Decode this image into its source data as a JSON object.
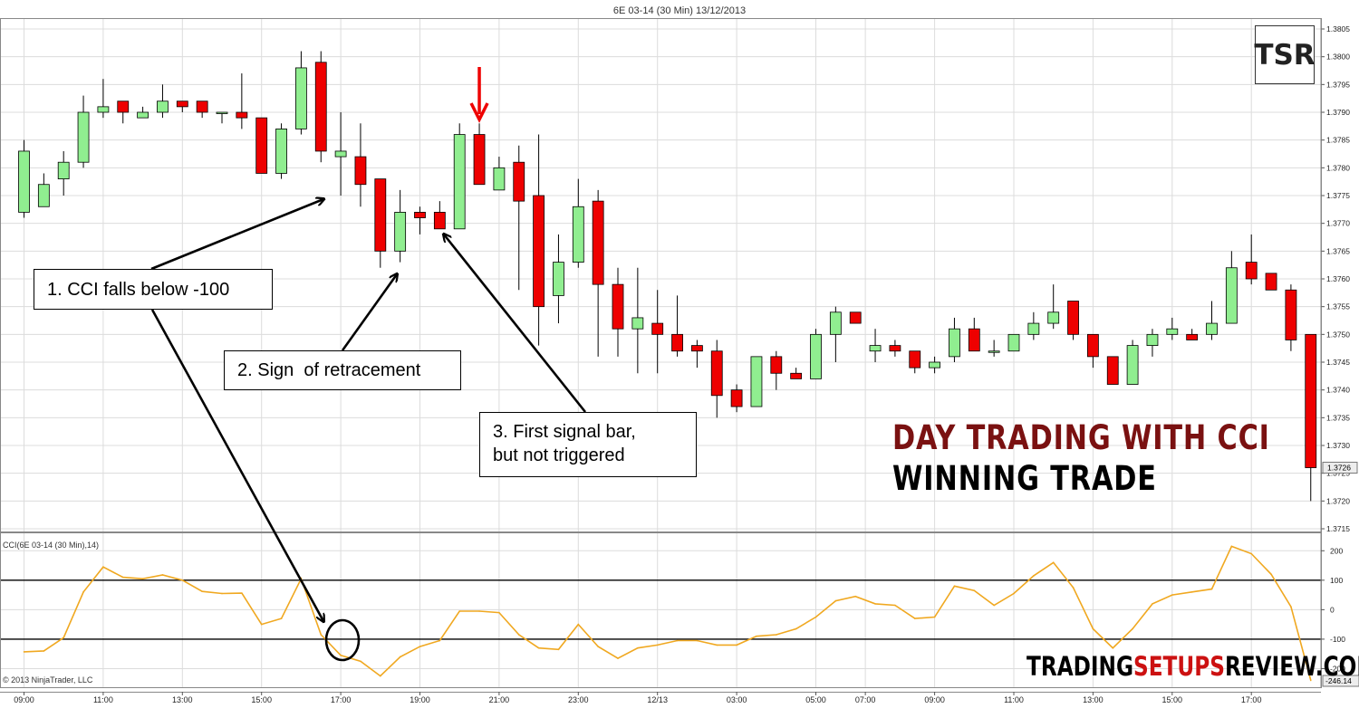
{
  "header": {
    "title": "6E 03-14 (30 Min)  13/12/2013"
  },
  "logo_text": "TSR",
  "copyright": "© 2013 NinjaTrader, LLC",
  "banner": {
    "line1": "DAY TRADING WITH CCI",
    "line2": "WINNING TRADE",
    "line1_color": "#7a1111",
    "line2_color": "#000000"
  },
  "brand": {
    "part1": "TRADING",
    "part2": "SETUPS",
    "part3": "REVIEW.COM",
    "accent_color": "#cc1111"
  },
  "annotations": [
    {
      "label": "1. CCI falls below -100",
      "lines": [
        "1. CCI falls below -100"
      ]
    },
    {
      "label": "2. Sign of retracement",
      "lines": [
        "2. Sign  of retracement"
      ]
    },
    {
      "label": "3. First signal bar, but not triggered",
      "lines": [
        "3. First signal bar,",
        "but not triggered"
      ]
    }
  ],
  "colors": {
    "up": "#90ee90",
    "down": "#ee0000",
    "cci_line": "#f0a820",
    "signal_arrow": "#ee0000",
    "grid": "#dcdcdc"
  },
  "chart_data": [
    {
      "type": "candlestick",
      "title": "6E 03-14 (30 Min)  13/12/2013",
      "ylim": [
        1.3715,
        1.3805
      ],
      "y_ticks": [
        "1.3805",
        "1.3800",
        "1.3795",
        "1.3790",
        "1.3785",
        "1.3780",
        "1.3775",
        "1.3770",
        "1.3765",
        "1.3760",
        "1.3755",
        "1.3750",
        "1.3745",
        "1.3740",
        "1.3735",
        "1.3730",
        "1.3725",
        "1.3720",
        "1.3715"
      ],
      "last_price": "1.3726",
      "x_ticks": [
        {
          "label": "09:00",
          "i": 0
        },
        {
          "label": "11:00",
          "i": 4
        },
        {
          "label": "13:00",
          "i": 8
        },
        {
          "label": "15:00",
          "i": 12
        },
        {
          "label": "17:00",
          "i": 16
        },
        {
          "label": "19:00",
          "i": 20
        },
        {
          "label": "21:00",
          "i": 24
        },
        {
          "label": "23:00",
          "i": 28
        },
        {
          "label": "12/13",
          "i": 32
        },
        {
          "label": "03:00",
          "i": 36
        },
        {
          "label": "05:00",
          "i": 40
        },
        {
          "label": "07:00",
          "i": 42.5
        },
        {
          "label": "09:00",
          "i": 46
        },
        {
          "label": "11:00",
          "i": 50
        },
        {
          "label": "13:00",
          "i": 54
        },
        {
          "label": "15:00",
          "i": 58
        },
        {
          "label": "17:00",
          "i": 62
        }
      ],
      "candles": [
        {
          "o": 1.3772,
          "h": 1.3785,
          "l": 1.3771,
          "c": 1.3783
        },
        {
          "o": 1.3773,
          "h": 1.3779,
          "l": 1.3773,
          "c": 1.3777
        },
        {
          "o": 1.3778,
          "h": 1.3783,
          "l": 1.3775,
          "c": 1.3781
        },
        {
          "o": 1.3781,
          "h": 1.3793,
          "l": 1.378,
          "c": 1.379
        },
        {
          "o": 1.379,
          "h": 1.3796,
          "l": 1.3789,
          "c": 1.3791
        },
        {
          "o": 1.3792,
          "h": 1.3792,
          "l": 1.3788,
          "c": 1.379
        },
        {
          "o": 1.3789,
          "h": 1.3791,
          "l": 1.3789,
          "c": 1.379
        },
        {
          "o": 1.379,
          "h": 1.3795,
          "l": 1.3789,
          "c": 1.3792
        },
        {
          "o": 1.3792,
          "h": 1.3792,
          "l": 1.379,
          "c": 1.3791
        },
        {
          "o": 1.3792,
          "h": 1.3792,
          "l": 1.3789,
          "c": 1.379
        },
        {
          "o": 1.379,
          "h": 1.379,
          "l": 1.3788,
          "c": 1.379
        },
        {
          "o": 1.379,
          "h": 1.3797,
          "l": 1.3787,
          "c": 1.3789
        },
        {
          "o": 1.3789,
          "h": 1.3789,
          "l": 1.3779,
          "c": 1.3779
        },
        {
          "o": 1.3779,
          "h": 1.3788,
          "l": 1.3778,
          "c": 1.3787
        },
        {
          "o": 1.3787,
          "h": 1.3801,
          "l": 1.3786,
          "c": 1.3798
        },
        {
          "o": 1.3799,
          "h": 1.3801,
          "l": 1.3781,
          "c": 1.3783
        },
        {
          "o": 1.3782,
          "h": 1.379,
          "l": 1.3775,
          "c": 1.3783
        },
        {
          "o": 1.3782,
          "h": 1.3788,
          "l": 1.3773,
          "c": 1.3777
        },
        {
          "o": 1.3778,
          "h": 1.3778,
          "l": 1.3762,
          "c": 1.3765
        },
        {
          "o": 1.3765,
          "h": 1.3776,
          "l": 1.3763,
          "c": 1.3772
        },
        {
          "o": 1.3772,
          "h": 1.3773,
          "l": 1.3768,
          "c": 1.3771
        },
        {
          "o": 1.3772,
          "h": 1.3774,
          "l": 1.3769,
          "c": 1.3769
        },
        {
          "o": 1.3769,
          "h": 1.3788,
          "l": 1.3769,
          "c": 1.3786
        },
        {
          "o": 1.3786,
          "h": 1.3788,
          "l": 1.3777,
          "c": 1.3777
        },
        {
          "o": 1.3776,
          "h": 1.3782,
          "l": 1.3776,
          "c": 1.378
        },
        {
          "o": 1.3781,
          "h": 1.3784,
          "l": 1.3758,
          "c": 1.3774
        },
        {
          "o": 1.3775,
          "h": 1.3786,
          "l": 1.3748,
          "c": 1.3755
        },
        {
          "o": 1.3757,
          "h": 1.3768,
          "l": 1.3752,
          "c": 1.3763
        },
        {
          "o": 1.3763,
          "h": 1.3778,
          "l": 1.3762,
          "c": 1.3773
        },
        {
          "o": 1.3774,
          "h": 1.3776,
          "l": 1.3746,
          "c": 1.3759
        },
        {
          "o": 1.3759,
          "h": 1.3762,
          "l": 1.3746,
          "c": 1.3751
        },
        {
          "o": 1.3751,
          "h": 1.3762,
          "l": 1.3743,
          "c": 1.3753
        },
        {
          "o": 1.3752,
          "h": 1.3758,
          "l": 1.3743,
          "c": 1.375
        },
        {
          "o": 1.375,
          "h": 1.3757,
          "l": 1.3746,
          "c": 1.3747
        },
        {
          "o": 1.3748,
          "h": 1.3749,
          "l": 1.3744,
          "c": 1.3747
        },
        {
          "o": 1.3747,
          "h": 1.3749,
          "l": 1.3735,
          "c": 1.3739
        },
        {
          "o": 1.374,
          "h": 1.3741,
          "l": 1.3736,
          "c": 1.3737
        },
        {
          "o": 1.3737,
          "h": 1.3746,
          "l": 1.3737,
          "c": 1.3746
        },
        {
          "o": 1.3746,
          "h": 1.3747,
          "l": 1.374,
          "c": 1.3743
        },
        {
          "o": 1.3743,
          "h": 1.3744,
          "l": 1.3742,
          "c": 1.3742
        },
        {
          "o": 1.3742,
          "h": 1.3751,
          "l": 1.3742,
          "c": 1.375
        },
        {
          "o": 1.375,
          "h": 1.3755,
          "l": 1.3745,
          "c": 1.3754
        },
        {
          "o": 1.3754,
          "h": 1.3754,
          "l": 1.3752,
          "c": 1.3752
        },
        {
          "o": 1.3747,
          "h": 1.3751,
          "l": 1.3745,
          "c": 1.3748
        },
        {
          "o": 1.3748,
          "h": 1.3749,
          "l": 1.3746,
          "c": 1.3747
        },
        {
          "o": 1.3747,
          "h": 1.3747,
          "l": 1.3743,
          "c": 1.3744
        },
        {
          "o": 1.3744,
          "h": 1.3746,
          "l": 1.3743,
          "c": 1.3745
        },
        {
          "o": 1.3746,
          "h": 1.3753,
          "l": 1.3745,
          "c": 1.3751
        },
        {
          "o": 1.3751,
          "h": 1.3753,
          "l": 1.3747,
          "c": 1.3747
        },
        {
          "o": 1.3747,
          "h": 1.3749,
          "l": 1.3746,
          "c": 1.3747
        },
        {
          "o": 1.3747,
          "h": 1.375,
          "l": 1.3747,
          "c": 1.375
        },
        {
          "o": 1.375,
          "h": 1.3754,
          "l": 1.3749,
          "c": 1.3752
        },
        {
          "o": 1.3752,
          "h": 1.3759,
          "l": 1.3751,
          "c": 1.3754
        },
        {
          "o": 1.3756,
          "h": 1.3756,
          "l": 1.3749,
          "c": 1.375
        },
        {
          "o": 1.375,
          "h": 1.375,
          "l": 1.3744,
          "c": 1.3746
        },
        {
          "o": 1.3746,
          "h": 1.3746,
          "l": 1.3741,
          "c": 1.3741
        },
        {
          "o": 1.3741,
          "h": 1.3749,
          "l": 1.3741,
          "c": 1.3748
        },
        {
          "o": 1.3748,
          "h": 1.3751,
          "l": 1.3746,
          "c": 1.375
        },
        {
          "o": 1.375,
          "h": 1.3753,
          "l": 1.3749,
          "c": 1.3751
        },
        {
          "o": 1.375,
          "h": 1.3751,
          "l": 1.3749,
          "c": 1.3749
        },
        {
          "o": 1.375,
          "h": 1.3756,
          "l": 1.3749,
          "c": 1.3752
        },
        {
          "o": 1.3752,
          "h": 1.3765,
          "l": 1.3752,
          "c": 1.3762
        },
        {
          "o": 1.3763,
          "h": 1.3768,
          "l": 1.3759,
          "c": 1.376
        },
        {
          "o": 1.3761,
          "h": 1.3761,
          "l": 1.3758,
          "c": 1.3758
        },
        {
          "o": 1.3758,
          "h": 1.3759,
          "l": 1.3747,
          "c": 1.3749
        },
        {
          "o": 1.375,
          "h": 1.375,
          "l": 1.372,
          "c": 1.3726
        }
      ]
    },
    {
      "type": "line",
      "title": "CCI(6E 03-14 (30 Min),14)",
      "series": [
        {
          "name": "CCI(6E 03-14 (30 Min),14)",
          "values": [
            -143,
            -140,
            -95,
            60,
            145,
            110,
            105,
            118,
            100,
            62,
            55,
            56,
            -50,
            -30,
            105,
            -85,
            -155,
            -175,
            -225,
            -160,
            -125,
            -105,
            -5,
            -5,
            -10,
            -85,
            -130,
            -135,
            -50,
            -125,
            -165,
            -130,
            -120,
            -105,
            -105,
            -120,
            -120,
            -90,
            -85,
            -65,
            -25,
            30,
            45,
            20,
            15,
            -30,
            -25,
            80,
            65,
            15,
            55,
            115,
            160,
            75,
            -65,
            -130,
            -65,
            20,
            50,
            60,
            70,
            215,
            190,
            120,
            10,
            -240
          ]
        }
      ],
      "ylim": [
        -260,
        250
      ],
      "y_ticks": [
        200,
        100,
        0,
        -100,
        -200
      ],
      "levels": [
        100,
        -100
      ],
      "last_value": "-246.14"
    }
  ]
}
